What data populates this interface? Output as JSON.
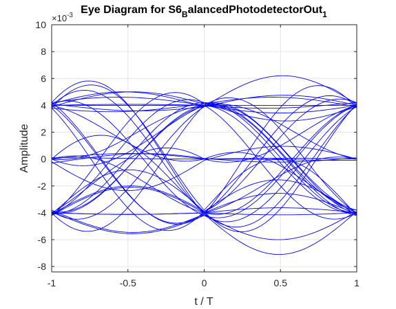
{
  "chart_data": {
    "type": "line",
    "title_main": "Eye Diagram for S6",
    "title_sub1": "B",
    "title_mid": "alancedPhotodetectorOut",
    "title_sub2": "1",
    "xlabel": "t / T",
    "ylabel": "Amplitude",
    "xlim": [
      -1,
      1
    ],
    "ylim": [
      -8.4,
      10
    ],
    "y_exponent_base": "×10",
    "y_exponent_power": "-3",
    "x_ticks": [
      -1,
      -0.5,
      0,
      0.5,
      1
    ],
    "x_tick_labels": [
      "-1",
      "-0.5",
      "0",
      "0.5",
      "1"
    ],
    "y_ticks": [
      -8,
      -6,
      -4,
      -2,
      0,
      2,
      4,
      6,
      8,
      10
    ],
    "y_tick_labels": [
      "-8",
      "-6",
      "-4",
      "-2",
      "0",
      "2",
      "4",
      "6",
      "8",
      "10"
    ],
    "grid": true,
    "line_color": "#0000ff",
    "axis_color": "#262626",
    "grid_color": "#e6e6e6",
    "trace_levels": [
      [
        4.0,
        4.0,
        4.0
      ],
      [
        4.2,
        4.0,
        4.2
      ],
      [
        3.8,
        4.1,
        3.9
      ],
      [
        4.1,
        3.9,
        4.0
      ],
      [
        -4.0,
        -4.0,
        -4.0
      ],
      [
        -4.2,
        -4.0,
        -4.1
      ],
      [
        -3.8,
        -4.1,
        -3.9
      ],
      [
        -4.1,
        -3.9,
        -4.2
      ],
      [
        4.0,
        -4.0,
        4.0
      ],
      [
        4.2,
        -4.1,
        3.8
      ],
      [
        3.8,
        -3.9,
        4.1
      ],
      [
        4.1,
        -4.2,
        4.0
      ],
      [
        -4.0,
        4.0,
        -4.0
      ],
      [
        -4.2,
        4.1,
        -3.8
      ],
      [
        -3.9,
        3.9,
        -4.1
      ],
      [
        -4.1,
        4.2,
        -4.0
      ],
      [
        4.0,
        4.0,
        -4.0
      ],
      [
        4.1,
        3.9,
        -4.2
      ],
      [
        3.9,
        4.1,
        -3.8
      ],
      [
        -4.0,
        -4.0,
        4.0
      ],
      [
        -4.1,
        -3.9,
        4.2
      ],
      [
        -3.9,
        -4.2,
        3.9
      ],
      [
        4.0,
        -4.0,
        -4.0
      ],
      [
        4.2,
        -4.1,
        -3.9
      ],
      [
        3.8,
        -3.8,
        -4.2
      ],
      [
        -4.0,
        4.0,
        4.0
      ],
      [
        -4.1,
        4.2,
        3.9
      ],
      [
        -3.9,
        3.9,
        4.1
      ],
      [
        0.0,
        0.0,
        0.0
      ],
      [
        -0.2,
        -0.1,
        0.0
      ],
      [
        0.1,
        0.0,
        -0.1
      ],
      [
        -0.3,
        0.05,
        0.1
      ],
      [
        0.0,
        4.0,
        0.0
      ],
      [
        0.0,
        -4.0,
        0.0
      ],
      [
        4.0,
        0.0,
        4.0
      ],
      [
        -4.0,
        0.0,
        -4.0
      ],
      [
        0.0,
        4.0,
        -4.0
      ],
      [
        0.0,
        -4.0,
        4.0
      ]
    ],
    "trace_overshoots": [
      [
        0.0,
        0.0
      ],
      [
        0.5,
        -0.3
      ],
      [
        -0.4,
        0.6
      ],
      [
        1.0,
        0.8
      ],
      [
        -0.8,
        -1.0
      ],
      [
        2.0,
        1.5
      ],
      [
        -1.5,
        -2.0
      ],
      [
        3.2,
        2.5
      ],
      [
        -2.6,
        -3.1
      ],
      [
        4.0,
        4.0
      ],
      [
        -3.6,
        -3.8
      ],
      [
        1.4,
        -1.2
      ],
      [
        -0.6,
        2.2
      ],
      [
        2.8,
        0.4
      ],
      [
        -2.2,
        1.0
      ]
    ]
  }
}
